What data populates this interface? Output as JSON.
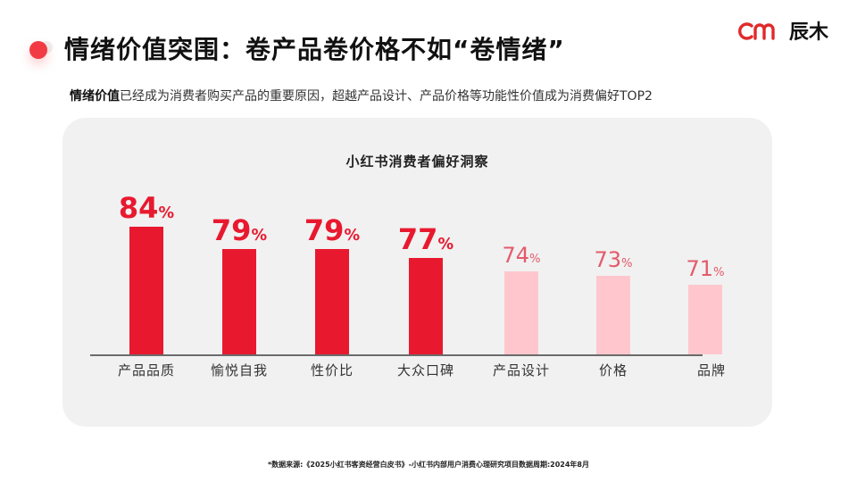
{
  "header": {
    "title": "情绪价值突围：卷产品卷价格不如“卷情绪”",
    "logo_text": "辰木",
    "logo_mark": "cm-logo-mark"
  },
  "subtitle": {
    "bold": "情绪价值",
    "rest": "已经成为消费者购买产品的重要原因，超越产品设计、产品价格等功能性价值成为消费偏好TOP2"
  },
  "colors": {
    "accent": "#e8192f",
    "accent_light": "#ffc7cd",
    "label_light": "#e35b6a",
    "panel_bg": "#f1f1f1",
    "dot": "#f23a45"
  },
  "chart_data": {
    "type": "bar",
    "title": "小红书消费者偏好洞察",
    "categories": [
      "产品品质",
      "愉悦自我",
      "性价比",
      "大众口碑",
      "产品设计",
      "价格",
      "品牌"
    ],
    "values": [
      84,
      79,
      79,
      77,
      74,
      73,
      71
    ],
    "unit": "%",
    "highlighted": [
      true,
      true,
      true,
      true,
      false,
      false,
      false
    ],
    "xlabel": "",
    "ylabel": "",
    "grid": false,
    "legend": "none",
    "value_labels": [
      "84%",
      "79%",
      "79%",
      "77%",
      "74%",
      "73%",
      "71%"
    ]
  },
  "footnote": "*数据来源:《2025小红书客资经营白皮书》-小红书内部用户消费心理研究项目数据周期:2024年8月"
}
